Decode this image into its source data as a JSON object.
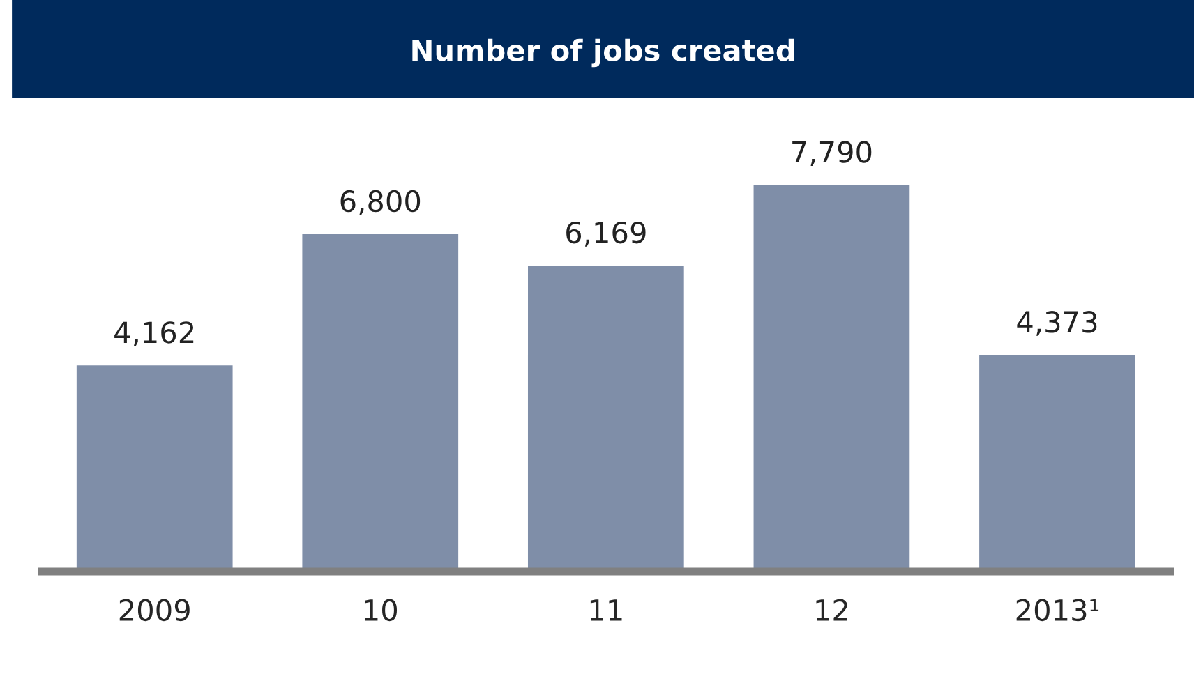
{
  "chart_data": {
    "type": "bar",
    "title": "Number of jobs created",
    "categories": [
      "2009",
      "10",
      "11",
      "12",
      "2013¹"
    ],
    "values": [
      4162,
      6800,
      6169,
      7790,
      4373
    ],
    "value_labels": [
      "4,162",
      "6,800",
      "6,169",
      "7,790",
      "4,373"
    ],
    "color": "#7f8ea8",
    "grid": false,
    "legend": false
  }
}
